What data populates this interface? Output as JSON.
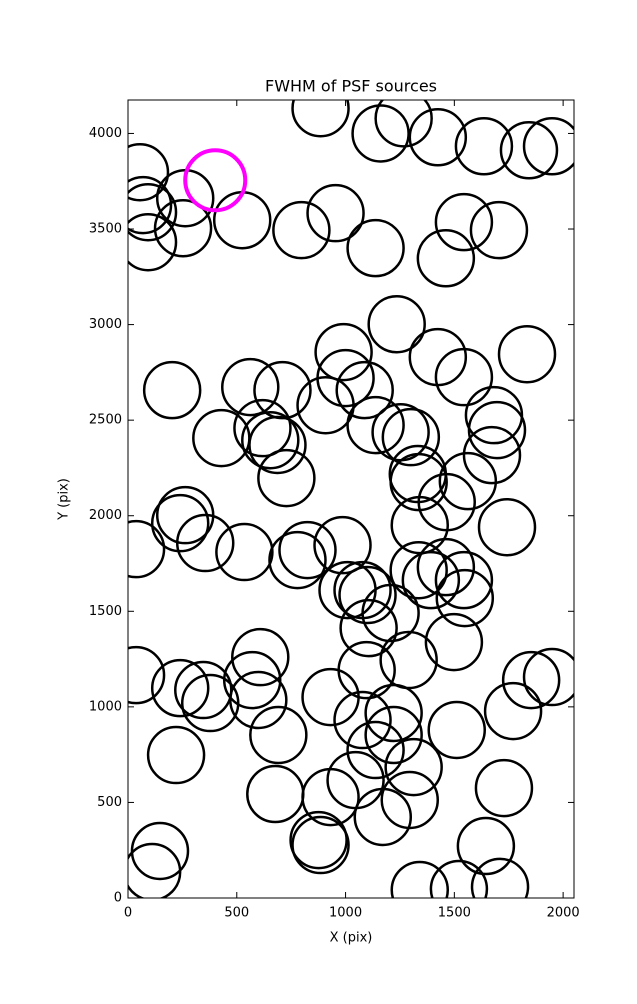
{
  "chart_data": {
    "type": "scatter",
    "title": "FWHM of PSF sources",
    "x_label": "X (pix)",
    "y_label": "Y (pix)",
    "xlim": [
      0,
      2050
    ],
    "ylim": [
      0,
      4175
    ],
    "xticks": [
      0,
      500,
      1000,
      1500,
      2000
    ],
    "yticks": [
      0,
      500,
      1000,
      1500,
      2000,
      2500,
      3000,
      3500,
      4000
    ],
    "series": [
      {
        "color": "#000000",
        "x": [
          885,
          1161,
          1267,
          1424,
          1636,
          1843,
          1949,
          55,
          69,
          92,
          92,
          263,
          253,
          525,
          797,
          954,
          1138,
          1461,
          1544,
          1705,
          1235,
          991,
          1000,
          1088,
          1424,
          1544,
          1834,
          203,
          562,
          710,
          908,
          1138,
          618,
          429,
          654,
          687,
          1253,
          1300,
          1682,
          1696,
          1673,
          728,
          1332,
          1336,
          1562,
          1465,
          1341,
          1742,
          263,
          240,
          355,
          37,
          535,
          825,
          779,
          986,
          1009,
          1078,
          1101,
          1336,
          1392,
          1461,
          1544,
          1548,
          1207,
          1106,
          1498,
          37,
          608,
          571,
          240,
          346,
          378,
          599,
          1097,
          1290,
          1853,
          1949,
          931,
          1078,
          1221,
          1221,
          1511,
          1770,
          691,
          221,
          1138,
          1313,
          677,
          931,
          1046,
          1171,
          1295,
          1728,
          147,
          111,
          876,
          885,
          1645,
          1341,
          1521,
          1710
        ],
        "y": [
          4132,
          4000,
          4079,
          3980,
          3933,
          3912,
          3933,
          3797,
          3625,
          3588,
          3431,
          3661,
          3504,
          3546,
          3494,
          3583,
          3400,
          3347,
          3536,
          3494,
          3002,
          2856,
          2720,
          2657,
          2830,
          2725,
          2845,
          2657,
          2673,
          2657,
          2578,
          2474,
          2458,
          2406,
          2395,
          2370,
          2437,
          2411,
          2526,
          2448,
          2317,
          2197,
          2218,
          2176,
          2181,
          2071,
          1951,
          1940,
          2003,
          1961,
          1857,
          1825,
          1810,
          1820,
          1768,
          1846,
          1611,
          1611,
          1585,
          1715,
          1663,
          1731,
          1663,
          1569,
          1491,
          1412,
          1339,
          1166,
          1260,
          1140,
          1098,
          1088,
          1020,
          1036,
          1192,
          1245,
          1140,
          1156,
          1051,
          931,
          968,
          853,
          879,
          978,
          853,
          748,
          774,
          685,
          544,
          528,
          617,
          424,
          513,
          575,
          246,
          136,
          303,
          277,
          272,
          42,
          47,
          58
        ]
      },
      {
        "color": "#ff00ff",
        "x": [
          401
        ],
        "y": [
          3755
        ]
      }
    ]
  }
}
